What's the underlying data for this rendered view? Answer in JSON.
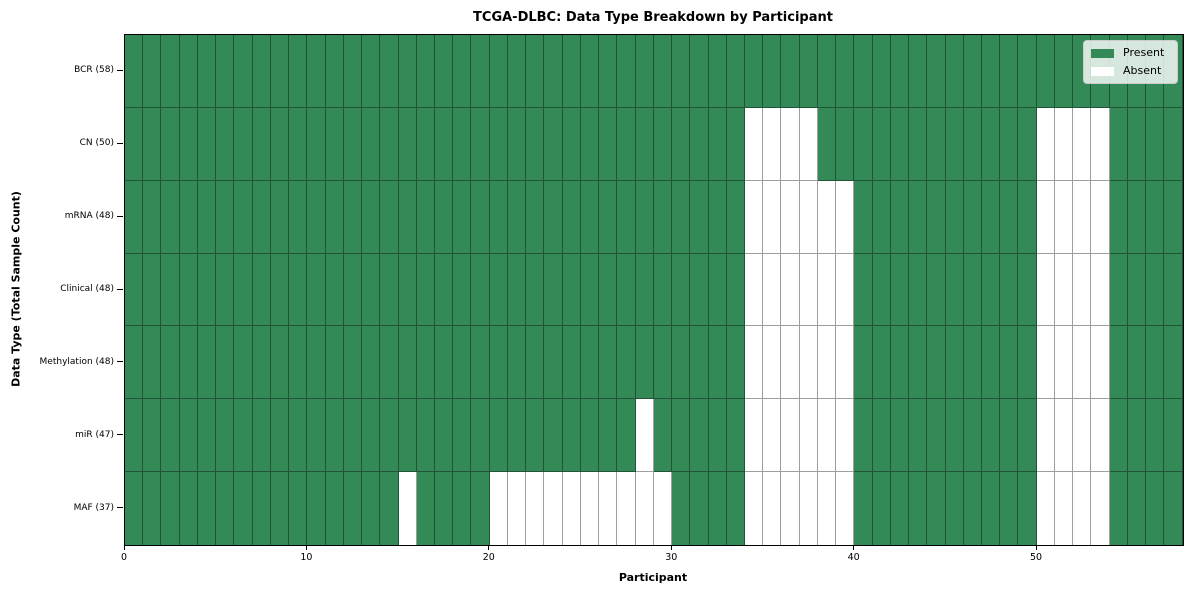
{
  "colors": {
    "present": "#338a57",
    "absent": "#ffffff",
    "cell_edge": "rgba(0,0,0,0.38)",
    "spine": "#000000",
    "legend_bg": "rgba(255,255,255,0.8)",
    "legend_border": "#cccccc"
  },
  "chart_data": {
    "type": "heatmap",
    "title": "TCGA-DLBC: Data Type Breakdown by Participant",
    "xlabel": "Participant",
    "ylabel": "Data Type (Total Sample Count)",
    "legend": {
      "present": "Present",
      "absent": "Absent"
    },
    "legend_position": "upper right",
    "grid": "cell borders on",
    "n_participants": 58,
    "x_range": [
      0,
      58
    ],
    "x_ticks": [
      0,
      10,
      20,
      30,
      40,
      50
    ],
    "rows": [
      {
        "data_type": "BCR",
        "label": "BCR (58)",
        "present_count": 58,
        "absent_participants": []
      },
      {
        "data_type": "CN",
        "label": "CN (50)",
        "present_count": 50,
        "absent_participants": [
          34,
          35,
          36,
          37,
          50,
          51,
          52,
          53
        ]
      },
      {
        "data_type": "mRNA",
        "label": "mRNA (48)",
        "present_count": 48,
        "absent_participants": [
          34,
          35,
          36,
          37,
          38,
          39,
          50,
          51,
          52,
          53
        ]
      },
      {
        "data_type": "Clinical",
        "label": "Clinical (48)",
        "present_count": 48,
        "absent_participants": [
          34,
          35,
          36,
          37,
          38,
          39,
          50,
          51,
          52,
          53
        ]
      },
      {
        "data_type": "Methylation",
        "label": "Methylation (48)",
        "present_count": 48,
        "absent_participants": [
          34,
          35,
          36,
          37,
          38,
          39,
          50,
          51,
          52,
          53
        ]
      },
      {
        "data_type": "miR",
        "label": "miR (47)",
        "present_count": 47,
        "absent_participants": [
          28,
          34,
          35,
          36,
          37,
          38,
          39,
          50,
          51,
          52,
          53
        ]
      },
      {
        "data_type": "MAF",
        "label": "MAF (37)",
        "present_count": 37,
        "absent_participants": [
          15,
          20,
          21,
          22,
          23,
          24,
          25,
          26,
          27,
          28,
          29,
          34,
          35,
          36,
          37,
          38,
          39,
          50,
          51,
          52,
          53
        ]
      }
    ]
  }
}
